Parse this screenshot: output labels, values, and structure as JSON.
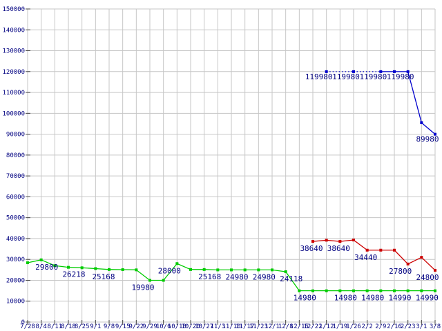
{
  "chart_data": {
    "type": "line",
    "title": "",
    "xlabel": "",
    "ylabel": "",
    "grid": true,
    "background_color": "#ffffff",
    "grid_color": "#c6c6c6",
    "axis_tick_color": "#404040",
    "axis_text_color": "#000080",
    "data_label_color": "#000080",
    "y_axis": {
      "min": 0,
      "max": 150000,
      "step": 10000,
      "tick_labels": [
        "0",
        "10000",
        "20000",
        "30000",
        "40000",
        "50000",
        "60000",
        "70000",
        "80000",
        "90000",
        "100000",
        "110000",
        "120000",
        "130000",
        "140000",
        "150000"
      ]
    },
    "x_axis": {
      "tick_labels": [
        "7/28",
        "8/4",
        "8/11",
        "8/18",
        "8/25",
        "9/1",
        "9/8",
        "9/15",
        "9/22",
        "9/29",
        "10/6",
        "10/13",
        "10/20",
        "10/27",
        "11/3",
        "11/10",
        "11/17",
        "11/23",
        "12/1",
        "12/8",
        "12/15",
        "12/22",
        "1/12",
        "1/19",
        "1/26",
        "2/2",
        "2/9",
        "2/16",
        "2/23",
        "3/1",
        "3/8"
      ]
    },
    "series": [
      {
        "name": "green-price-line",
        "color": "#00cc00",
        "label_dx": 8,
        "label_dy": 14,
        "values": [
          28400,
          29800,
          27000,
          26218,
          26000,
          25600,
          25168,
          25100,
          25000,
          19980,
          19980,
          28000,
          25168,
          25168,
          24980,
          24980,
          24980,
          24980,
          24980,
          24118,
          14980,
          14980,
          14980,
          14980,
          14980,
          14980,
          14990,
          14990,
          14990,
          14990,
          14990
        ],
        "labels": [
          {
            "i": 1,
            "text": "29800"
          },
          {
            "i": 3,
            "text": "26218"
          },
          {
            "i": 6,
            "text": "25168",
            "dx": -8
          },
          {
            "i": 9,
            "text": "19980",
            "dx": -10
          },
          {
            "i": 11,
            "text": "28000",
            "dx": -11
          },
          {
            "i": 13,
            "text": "25168"
          },
          {
            "i": 15,
            "text": "24980"
          },
          {
            "i": 17,
            "text": "24980"
          },
          {
            "i": 19,
            "text": "24118"
          },
          {
            "i": 20,
            "text": "14980"
          },
          {
            "i": 23,
            "text": "14980"
          },
          {
            "i": 25,
            "text": "14980"
          },
          {
            "i": 27,
            "text": "14990"
          },
          {
            "i": 29,
            "text": "14990"
          }
        ]
      },
      {
        "name": "red-price-line",
        "color": "#cc0000",
        "label_dx": -2,
        "label_dy": 14,
        "values": [
          null,
          null,
          null,
          null,
          null,
          null,
          null,
          null,
          null,
          null,
          null,
          null,
          null,
          null,
          null,
          null,
          null,
          null,
          null,
          null,
          null,
          38640,
          39200,
          38640,
          39300,
          34440,
          34440,
          34440,
          27800,
          31000,
          24800
        ],
        "labels": [
          {
            "i": 21,
            "text": "38640"
          },
          {
            "i": 23,
            "text": "38640"
          },
          {
            "i": 25,
            "text": "34440"
          },
          {
            "i": 28,
            "text": "27800",
            "dx": -11
          },
          {
            "i": 30,
            "text": "24800"
          }
        ]
      },
      {
        "name": "blue-price-line",
        "color": "#0000cc",
        "label_dx": -11,
        "label_dy": 11,
        "dotted_on_gaps": true,
        "values": [
          null,
          null,
          null,
          null,
          null,
          null,
          null,
          null,
          null,
          null,
          null,
          null,
          null,
          null,
          null,
          null,
          null,
          null,
          null,
          null,
          null,
          null,
          119980,
          null,
          119980,
          null,
          119980,
          119980,
          119980,
          95500,
          89980
        ],
        "labels": [
          {
            "i": 22,
            "text": "119980"
          },
          {
            "i": 24,
            "text": "119980"
          },
          {
            "i": 26,
            "text": "119980"
          },
          {
            "i": 28,
            "text": "119980"
          },
          {
            "i": 30,
            "text": "89980"
          }
        ]
      }
    ]
  }
}
